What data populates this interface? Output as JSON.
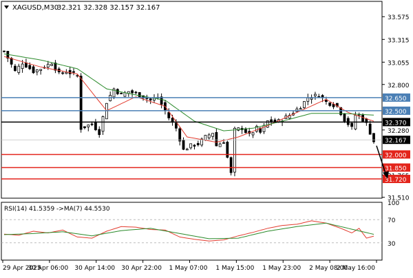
{
  "chart_data": [
    {
      "type": "candlestick",
      "symbol_header": "XAGUSD,M30",
      "ohlc_header": "32.321 32.328 32.157 32.167",
      "current_price": 32.167,
      "ylim": [
        31.5,
        33.75
      ],
      "y_ticks": [
        31.51,
        31.765,
        32.28,
        32.8,
        33.055,
        33.315,
        33.575
      ],
      "y_tick_labels": [
        "31.510",
        "31.765",
        "32.280",
        "32.800",
        "33.055",
        "33.315",
        "33.575"
      ],
      "x_tick_labels": [
        "29 Apr 2025",
        "30 Apr 06:00",
        "30 Apr 14:00",
        "30 Apr 22:00",
        "1 May 07:00",
        "1 May 15:00",
        "1 May 23:00",
        "2 May 08:00",
        "2 May 16:00"
      ],
      "levels": [
        {
          "value": 32.65,
          "label": "32.650",
          "color": "#4a7fb5"
        },
        {
          "value": 32.5,
          "label": "32.500",
          "color": "#4a7fb5"
        },
        {
          "value": 32.37,
          "label": "32.370",
          "color": "#000000"
        },
        {
          "value": 32.0,
          "label": "32.000",
          "color": "#e3241b"
        },
        {
          "value": 31.85,
          "label": "31.850",
          "color": "#e3241b"
        },
        {
          "value": 31.72,
          "label": "31.720",
          "color": "#e3241b"
        }
      ],
      "close_path": [
        [
          0,
          33.18
        ],
        [
          3,
          32.95
        ],
        [
          5,
          33.05
        ],
        [
          8,
          32.95
        ],
        [
          10,
          32.98
        ],
        [
          13,
          33.05
        ],
        [
          15,
          32.92
        ],
        [
          17,
          32.95
        ],
        [
          20,
          32.9
        ],
        [
          21,
          32.3
        ],
        [
          24,
          32.35
        ],
        [
          26,
          32.25
        ],
        [
          28,
          32.6
        ],
        [
          30,
          32.75
        ],
        [
          32,
          32.68
        ],
        [
          34,
          32.72
        ],
        [
          37,
          32.68
        ],
        [
          40,
          32.62
        ],
        [
          42,
          32.65
        ],
        [
          45,
          32.42
        ],
        [
          47,
          32.3
        ],
        [
          49,
          32.05
        ],
        [
          51,
          32.1
        ],
        [
          53,
          32.12
        ],
        [
          55,
          32.2
        ],
        [
          57,
          32.25
        ],
        [
          58,
          32.1
        ],
        [
          60,
          32.15
        ],
        [
          62,
          31.78
        ],
        [
          63,
          32.28
        ],
        [
          65,
          32.3
        ],
        [
          67,
          32.22
        ],
        [
          69,
          32.3
        ],
        [
          70,
          32.25
        ],
        [
          72,
          32.38
        ],
        [
          75,
          32.38
        ],
        [
          78,
          32.45
        ],
        [
          81,
          32.55
        ],
        [
          83,
          32.65
        ],
        [
          86,
          32.68
        ],
        [
          88,
          32.6
        ],
        [
          91,
          32.55
        ],
        [
          93,
          32.4
        ],
        [
          95,
          32.3
        ],
        [
          96,
          32.45
        ],
        [
          97,
          32.45
        ],
        [
          99,
          32.35
        ],
        [
          101,
          32.15
        ]
      ],
      "series": [
        {
          "name": "",
          "color": "#e33b2e",
          "values": [
            [
              0,
              33.12
            ],
            [
              10,
              33.0
            ],
            [
              20,
              32.92
            ],
            [
              28,
              32.5
            ],
            [
              36,
              32.66
            ],
            [
              44,
              32.55
            ],
            [
              50,
              32.2
            ],
            [
              58,
              32.14
            ],
            [
              64,
              32.2
            ],
            [
              72,
              32.33
            ],
            [
              80,
              32.48
            ],
            [
              88,
              32.63
            ],
            [
              94,
              32.48
            ],
            [
              101,
              32.38
            ]
          ]
        },
        {
          "name": "",
          "color": "#2a8a2a",
          "values": [
            [
              0,
              33.15
            ],
            [
              10,
              33.08
            ],
            [
              20,
              32.98
            ],
            [
              28,
              32.75
            ],
            [
              36,
              32.68
            ],
            [
              44,
              32.62
            ],
            [
              52,
              32.38
            ],
            [
              60,
              32.27
            ],
            [
              68,
              32.3
            ],
            [
              76,
              32.38
            ],
            [
              84,
              32.47
            ],
            [
              92,
              32.47
            ],
            [
              101,
              32.45
            ]
          ]
        }
      ],
      "annotation": "arrow pointing down towards 31.720"
    },
    {
      "type": "line",
      "header": "RSI(14) 41.5359 ->MA(7) 44.5530",
      "ylim": [
        0,
        100
      ],
      "y_ticks": [
        30,
        70,
        100
      ],
      "y_tick_labels": [
        "30",
        "70",
        "100"
      ],
      "series": [
        {
          "name": "RSI(14)",
          "color": "#e33b2e",
          "values": [
            [
              0,
              45
            ],
            [
              4,
              43
            ],
            [
              8,
              50
            ],
            [
              12,
              47
            ],
            [
              16,
              52
            ],
            [
              20,
              40
            ],
            [
              24,
              38
            ],
            [
              28,
              50
            ],
            [
              32,
              58
            ],
            [
              36,
              57
            ],
            [
              40,
              53
            ],
            [
              44,
              52
            ],
            [
              48,
              40
            ],
            [
              52,
              36
            ],
            [
              56,
              33
            ],
            [
              60,
              35
            ],
            [
              64,
              42
            ],
            [
              68,
              48
            ],
            [
              72,
              55
            ],
            [
              76,
              60
            ],
            [
              80,
              62
            ],
            [
              84,
              68
            ],
            [
              88,
              64
            ],
            [
              92,
              55
            ],
            [
              95,
              47
            ],
            [
              97,
              55
            ],
            [
              99,
              38
            ],
            [
              101,
              41.5
            ]
          ]
        },
        {
          "name": "MA(7)",
          "color": "#2a8a2a",
          "values": [
            [
              0,
              44
            ],
            [
              8,
              46
            ],
            [
              16,
              49
            ],
            [
              24,
              42
            ],
            [
              32,
              51
            ],
            [
              40,
              55
            ],
            [
              48,
              46
            ],
            [
              56,
              37
            ],
            [
              64,
              38
            ],
            [
              72,
              50
            ],
            [
              80,
              58
            ],
            [
              88,
              64
            ],
            [
              96,
              52
            ],
            [
              101,
              44.6
            ]
          ]
        }
      ]
    }
  ]
}
